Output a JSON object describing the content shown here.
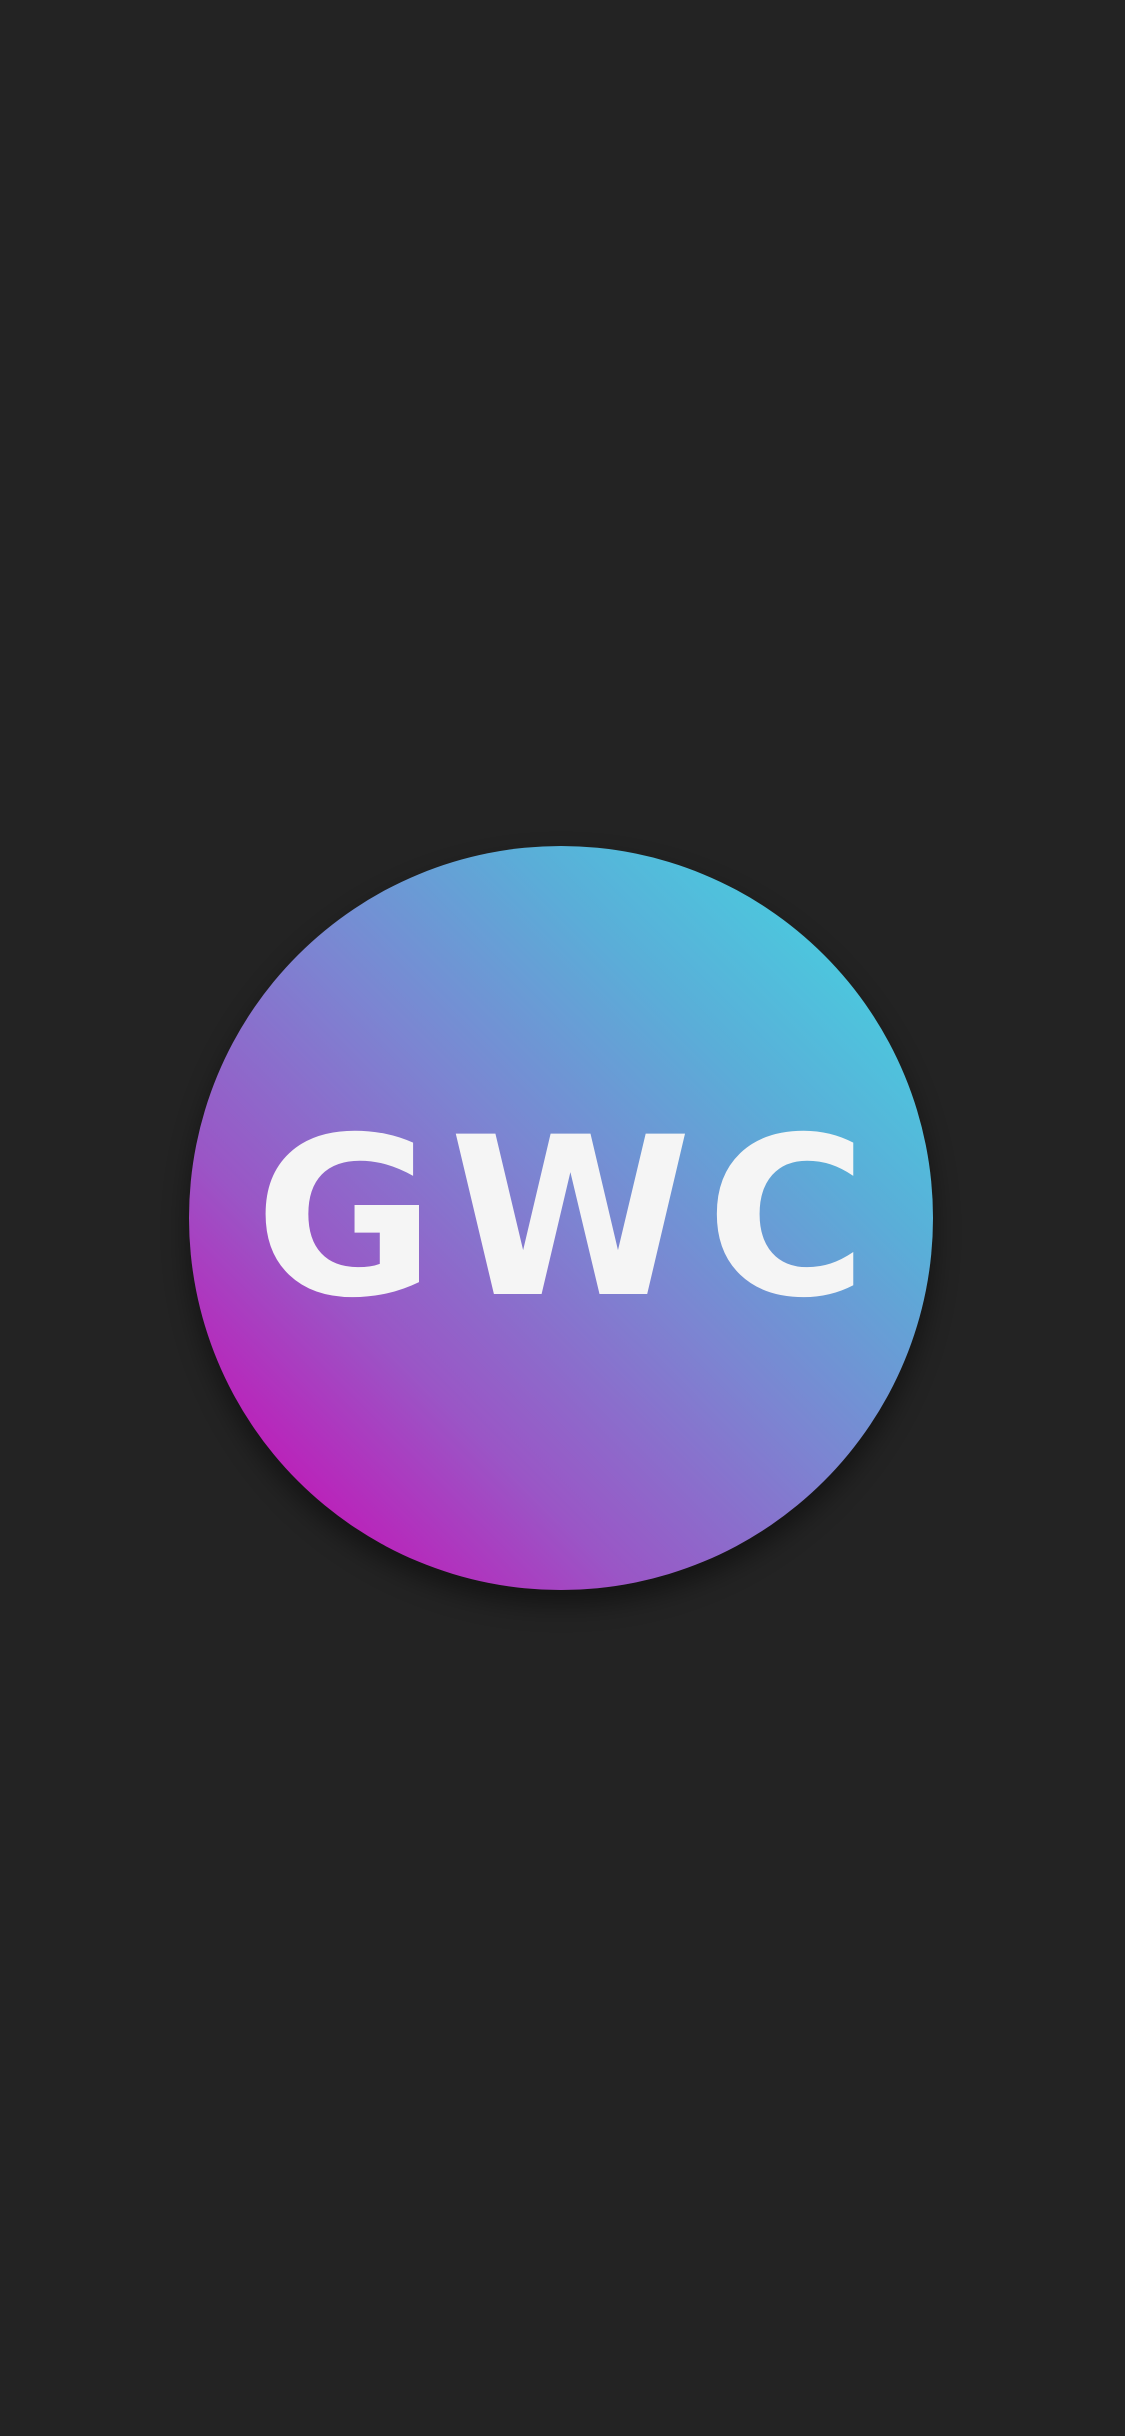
{
  "logo": {
    "text": "GWC",
    "gradient_colors": [
      "#3fdfe3",
      "#7b86d2",
      "#c90fb6"
    ],
    "text_color": "#f5f5f5"
  },
  "background_color": "#232323"
}
